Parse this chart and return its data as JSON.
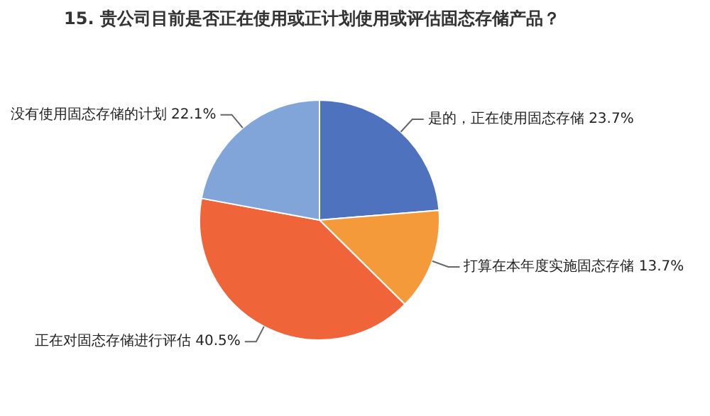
{
  "chart_data": {
    "type": "pie",
    "title": "15. 贵公司目前是否正在使用或正计划使用或评估固态存储产品？",
    "categories": [
      "是的，正在使用固态存储",
      "打算在本年度实施固态存储",
      "正在对固态存储进行评估",
      "没有使用固态存储的计划"
    ],
    "values": [
      23.7,
      13.7,
      40.5,
      22.1
    ],
    "value_labels": [
      "23.7%",
      "13.7%",
      "40.5%",
      "22.1%"
    ],
    "colors": [
      "#4f72be",
      "#f59a3a",
      "#f0643a",
      "#82a5d9"
    ],
    "legend": false
  }
}
